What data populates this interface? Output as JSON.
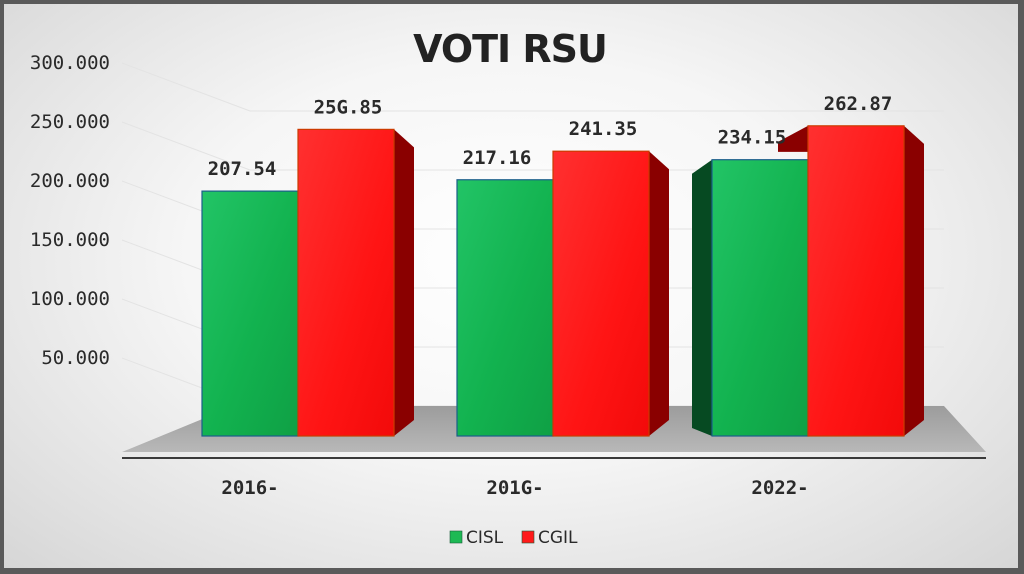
{
  "chart_data": {
    "type": "bar",
    "title": "VOTI RSU",
    "categories": [
      "2016-",
      "201G-",
      "2022-"
    ],
    "series": [
      {
        "name": "CISL",
        "values": [
          207.54,
          217.16,
          234.15
        ],
        "labels": [
          "207.54",
          "217.16",
          "234.15"
        ],
        "color": "#1db954"
      },
      {
        "name": "CGIL",
        "values": [
          259.85,
          241.35,
          262.87
        ],
        "labels": [
          "25G.85",
          "241.35",
          "262.87"
        ],
        "color": "#ff1a1a"
      }
    ],
    "y_ticks": [
      "50.000",
      "100.000",
      "150.000",
      "200.000",
      "250.000",
      "300.000"
    ],
    "y_tick_values": [
      50,
      100,
      150,
      200,
      250,
      300
    ],
    "ylim": [
      0,
      300
    ],
    "grid": true,
    "legend": "bottom",
    "style": "3d"
  }
}
